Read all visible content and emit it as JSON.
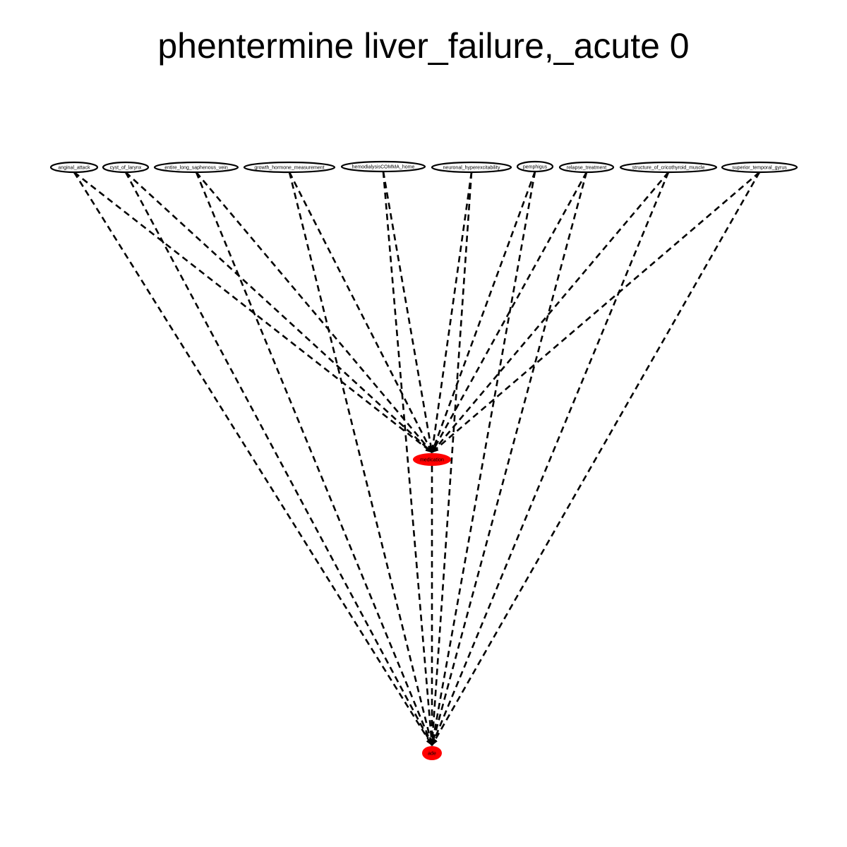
{
  "title": "phentermine liver_failure,_acute 0",
  "colors": {
    "target_node_fill": "#ff0000",
    "outline": "#000000",
    "background": "#ffffff"
  },
  "edge_style": "dashed-arrow",
  "nodes": {
    "sources": [
      {
        "id": "anginal_attack",
        "label": "anginal_attack"
      },
      {
        "id": "cyst_of_larynx",
        "label": "cyst_of_larynx"
      },
      {
        "id": "entire_long_saphenous_vein",
        "label": "entire_long_saphenous_vein"
      },
      {
        "id": "growth_hormone_measurement",
        "label": "growth_hormone_measurement"
      },
      {
        "id": "hemodialysisCOMMA_home",
        "label": "hemodialysisCOMMA_home"
      },
      {
        "id": "neuronal_hyperexcitability",
        "label": "neuronal_hyperexcitability"
      },
      {
        "id": "pemphigus",
        "label": "pemphigus"
      },
      {
        "id": "relapse_treatment",
        "label": "relapse_treatment"
      },
      {
        "id": "structure_of_cricothyroid_muscle",
        "label": "structure_of_cricothyroid_muscle"
      },
      {
        "id": "superior_temporal_gyrus",
        "label": "superior_temporal_gyrus"
      }
    ],
    "medication": {
      "id": "medication",
      "label": "medication"
    },
    "ade": {
      "id": "ade",
      "label": "ade"
    }
  },
  "edges": [
    {
      "from": "anginal_attack",
      "to": "medication"
    },
    {
      "from": "anginal_attack",
      "to": "ade"
    },
    {
      "from": "cyst_of_larynx",
      "to": "medication"
    },
    {
      "from": "cyst_of_larynx",
      "to": "ade"
    },
    {
      "from": "entire_long_saphenous_vein",
      "to": "medication"
    },
    {
      "from": "entire_long_saphenous_vein",
      "to": "ade"
    },
    {
      "from": "growth_hormone_measurement",
      "to": "medication"
    },
    {
      "from": "growth_hormone_measurement",
      "to": "ade"
    },
    {
      "from": "hemodialysisCOMMA_home",
      "to": "medication"
    },
    {
      "from": "hemodialysisCOMMA_home",
      "to": "ade"
    },
    {
      "from": "neuronal_hyperexcitability",
      "to": "medication"
    },
    {
      "from": "neuronal_hyperexcitability",
      "to": "ade"
    },
    {
      "from": "pemphigus",
      "to": "medication"
    },
    {
      "from": "pemphigus",
      "to": "ade"
    },
    {
      "from": "relapse_treatment",
      "to": "medication"
    },
    {
      "from": "relapse_treatment",
      "to": "ade"
    },
    {
      "from": "structure_of_cricothyroid_muscle",
      "to": "medication"
    },
    {
      "from": "structure_of_cricothyroid_muscle",
      "to": "ade"
    },
    {
      "from": "superior_temporal_gyrus",
      "to": "medication"
    },
    {
      "from": "superior_temporal_gyrus",
      "to": "ade"
    },
    {
      "from": "medication",
      "to": "ade"
    }
  ]
}
